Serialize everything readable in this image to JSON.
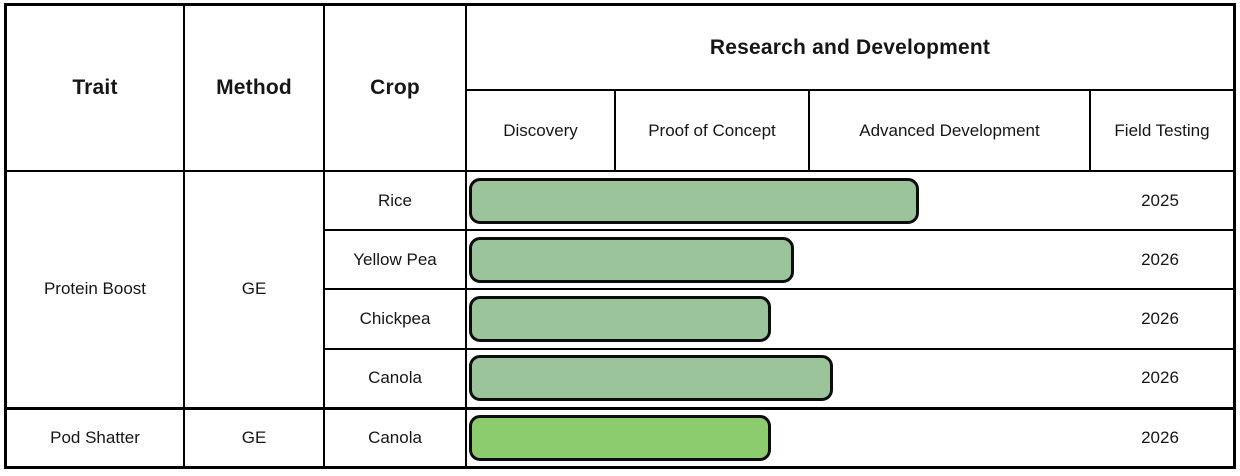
{
  "header": {
    "trait": "Trait",
    "method": "Method",
    "crop": "Crop",
    "rnd_title": "Research and Development",
    "stages": [
      "Discovery",
      "Proof of Concept",
      "Advanced Development",
      "Field Testing"
    ]
  },
  "groups": [
    {
      "trait": "Protein Boost",
      "method": "GE",
      "rows": [
        {
          "crop": "Rice",
          "year": "2025",
          "bar": {
            "width_pct": 57.9,
            "color": "#9CC49B"
          }
        },
        {
          "crop": "Yellow Pea",
          "year": "2026",
          "bar": {
            "width_pct": 41.7,
            "color": "#9CC49B"
          }
        },
        {
          "crop": "Chickpea",
          "year": "2026",
          "bar": {
            "width_pct": 38.7,
            "color": "#9CC49B"
          }
        },
        {
          "crop": "Canola",
          "year": "2026",
          "bar": {
            "width_pct": 46.8,
            "color": "#9CC49B"
          }
        }
      ]
    },
    {
      "trait": "Pod Shatter",
      "method": "GE",
      "rows": [
        {
          "crop": "Canola",
          "year": "2026",
          "bar": {
            "width_pct": 38.7,
            "color": "#8DCB6F"
          }
        }
      ]
    }
  ],
  "colors": {
    "bar_sage": "#9CC49B",
    "bar_bright_green": "#8DCB6F",
    "grid_border": "#000000",
    "text": "#161616"
  },
  "chart_data": {
    "type": "bar",
    "orientation": "horizontal",
    "title": "Research and Development",
    "stage_axis": [
      "Discovery",
      "Proof of Concept",
      "Advanced Development",
      "Field Testing"
    ],
    "legend_position": "none",
    "grid": "table-borders",
    "series": [
      {
        "trait": "Protein Boost",
        "method": "GE",
        "crop": "Rice",
        "pipeline_progress_pct": 58,
        "furthest_stage_reached": "Advanced Development",
        "field_testing_year": 2025
      },
      {
        "trait": "Protein Boost",
        "method": "GE",
        "crop": "Yellow Pea",
        "pipeline_progress_pct": 42,
        "furthest_stage_reached": "Proof of Concept",
        "field_testing_year": 2026
      },
      {
        "trait": "Protein Boost",
        "method": "GE",
        "crop": "Chickpea",
        "pipeline_progress_pct": 39,
        "furthest_stage_reached": "Proof of Concept",
        "field_testing_year": 2026
      },
      {
        "trait": "Protein Boost",
        "method": "GE",
        "crop": "Canola",
        "pipeline_progress_pct": 47,
        "furthest_stage_reached": "Advanced Development",
        "field_testing_year": 2026
      },
      {
        "trait": "Pod Shatter",
        "method": "GE",
        "crop": "Canola",
        "pipeline_progress_pct": 39,
        "furthest_stage_reached": "Proof of Concept",
        "field_testing_year": 2026
      }
    ]
  }
}
